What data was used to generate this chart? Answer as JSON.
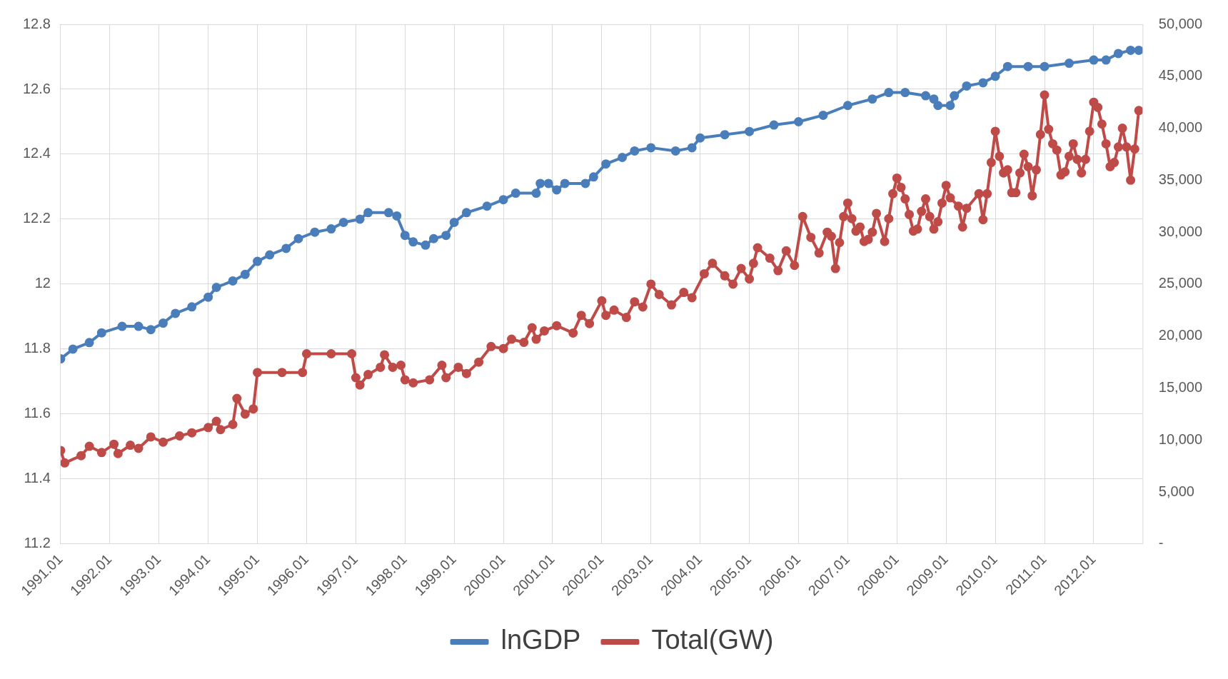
{
  "chart_data": {
    "type": "line",
    "xlim": [
      "1991-01",
      "2013-01"
    ],
    "xticks": [
      {
        "value": "1991-01",
        "label": "1991.01"
      },
      {
        "value": "1992-01",
        "label": "1992.01"
      },
      {
        "value": "1993-01",
        "label": "1993.01"
      },
      {
        "value": "1994-01",
        "label": "1994.01"
      },
      {
        "value": "1995-01",
        "label": "1995.01"
      },
      {
        "value": "1996-01",
        "label": "1996.01"
      },
      {
        "value": "1997-01",
        "label": "1997.01"
      },
      {
        "value": "1998-01",
        "label": "1998.01"
      },
      {
        "value": "1999-01",
        "label": "1999.01"
      },
      {
        "value": "2000-01",
        "label": "2000.01"
      },
      {
        "value": "2001-01",
        "label": "2001.01"
      },
      {
        "value": "2002-01",
        "label": "2002.01"
      },
      {
        "value": "2003-01",
        "label": "2003.01"
      },
      {
        "value": "2004-01",
        "label": "2004.01"
      },
      {
        "value": "2005-01",
        "label": "2005.01"
      },
      {
        "value": "2006-01",
        "label": "2006.01"
      },
      {
        "value": "2007-01",
        "label": "2007.01"
      },
      {
        "value": "2008-01",
        "label": "2008.01"
      },
      {
        "value": "2009-01",
        "label": "2009.01"
      },
      {
        "value": "2010-01",
        "label": "2010.01"
      },
      {
        "value": "2011-01",
        "label": "2011.01"
      },
      {
        "value": "2012-01",
        "label": "2012.01"
      }
    ],
    "ylim": [
      11.2,
      12.8
    ],
    "yticks": [
      11.2,
      11.4,
      11.6,
      11.8,
      12,
      12.2,
      12.4,
      12.6,
      12.8
    ],
    "y2lim": [
      0,
      50000
    ],
    "y2ticks": [
      {
        "value": 0,
        "label": "-"
      },
      {
        "value": 5000,
        "label": "5,000"
      },
      {
        "value": 10000,
        "label": "10,000"
      },
      {
        "value": 15000,
        "label": "15,000"
      },
      {
        "value": 20000,
        "label": "20,000"
      },
      {
        "value": 25000,
        "label": "25,000"
      },
      {
        "value": 30000,
        "label": "30,000"
      },
      {
        "value": 35000,
        "label": "35,000"
      },
      {
        "value": 40000,
        "label": "40,000"
      },
      {
        "value": 45000,
        "label": "45,000"
      },
      {
        "value": 50000,
        "label": "50,000"
      }
    ],
    "grid": true,
    "legend": "bottom",
    "marker": "circle",
    "line_style": "solid",
    "series": [
      {
        "name": "lnGDP",
        "color": "#4a7ebb",
        "x": [
          "1991-01",
          "1991-04",
          "1991-08",
          "1991-11",
          "1992-04",
          "1992-08",
          "1992-11",
          "1993-02",
          "1993-05",
          "1993-09",
          "1994-01",
          "1994-03",
          "1994-07",
          "1994-10",
          "1995-01",
          "1995-04",
          "1995-08",
          "1995-11",
          "1996-03",
          "1996-07",
          "1996-10",
          "1997-02",
          "1997-04",
          "1997-09",
          "1997-11",
          "1998-01",
          "1998-03",
          "1998-06",
          "1998-08",
          "1998-11",
          "1999-01",
          "1999-04",
          "1999-09",
          "2000-01",
          "2000-04",
          "2000-09",
          "2000-10",
          "2000-12",
          "2001-02",
          "2001-04",
          "2001-09",
          "2001-11",
          "2002-02",
          "2002-06",
          "2002-09",
          "2003-01",
          "2003-07",
          "2003-11",
          "2004-01",
          "2004-07",
          "2005-01",
          "2005-07",
          "2006-01",
          "2006-07",
          "2007-01",
          "2007-07",
          "2007-11",
          "2008-03",
          "2008-08",
          "2008-10",
          "2008-11",
          "2009-02",
          "2009-03",
          "2009-06",
          "2009-10",
          "2010-01",
          "2010-04",
          "2010-09",
          "2011-01",
          "2011-07",
          "2012-01",
          "2012-04",
          "2012-07",
          "2012-10",
          "2012-12"
        ],
        "values": [
          11.77,
          11.8,
          11.82,
          11.85,
          11.87,
          11.87,
          11.86,
          11.88,
          11.91,
          11.93,
          11.96,
          11.99,
          12.01,
          12.03,
          12.07,
          12.09,
          12.11,
          12.14,
          12.16,
          12.17,
          12.19,
          12.2,
          12.22,
          12.22,
          12.21,
          12.15,
          12.13,
          12.12,
          12.14,
          12.15,
          12.19,
          12.22,
          12.24,
          12.26,
          12.28,
          12.28,
          12.31,
          12.31,
          12.29,
          12.31,
          12.31,
          12.33,
          12.37,
          12.39,
          12.41,
          12.42,
          12.41,
          12.42,
          12.45,
          12.46,
          12.47,
          12.49,
          12.5,
          12.52,
          12.55,
          12.57,
          12.59,
          12.59,
          12.58,
          12.57,
          12.55,
          12.55,
          12.58,
          12.61,
          12.62,
          12.64,
          12.67,
          12.67,
          12.67,
          12.68,
          12.69,
          12.69,
          12.71,
          12.72,
          12.72
        ]
      },
      {
        "name": "Total(GW)",
        "color": "#be4b48",
        "axis": "y2",
        "x": [
          "1991-01",
          "1991-02",
          "1991-06",
          "1991-08",
          "1991-11",
          "1992-02",
          "1992-03",
          "1992-06",
          "1992-08",
          "1992-11",
          "1993-02",
          "1993-06",
          "1993-09",
          "1994-01",
          "1994-03",
          "1994-04",
          "1994-07",
          "1994-08",
          "1994-10",
          "1994-12",
          "1995-01",
          "1995-07",
          "1995-12",
          "1996-01",
          "1996-07",
          "1996-12",
          "1997-01",
          "1997-02",
          "1997-04",
          "1997-07",
          "1997-08",
          "1997-10",
          "1997-12",
          "1998-01",
          "1998-03",
          "1998-07",
          "1998-10",
          "1998-11",
          "1999-02",
          "1999-04",
          "1999-07",
          "1999-10",
          "2000-01",
          "2000-03",
          "2000-06",
          "2000-08",
          "2000-09",
          "2000-11",
          "2001-02",
          "2001-06",
          "2001-08",
          "2001-10",
          "2002-01",
          "2002-02",
          "2002-04",
          "2002-07",
          "2002-09",
          "2002-11",
          "2003-01",
          "2003-03",
          "2003-06",
          "2003-09",
          "2003-11",
          "2004-02",
          "2004-04",
          "2004-07",
          "2004-09",
          "2004-11",
          "2005-01",
          "2005-02",
          "2005-03",
          "2005-06",
          "2005-08",
          "2005-10",
          "2005-12",
          "2006-02",
          "2006-04",
          "2006-06",
          "2006-08",
          "2006-09",
          "2006-10",
          "2006-11",
          "2006-12",
          "2007-01",
          "2007-02",
          "2007-03",
          "2007-04",
          "2007-05",
          "2007-06",
          "2007-07",
          "2007-08",
          "2007-10",
          "2007-11",
          "2007-12",
          "2008-01",
          "2008-02",
          "2008-03",
          "2008-04",
          "2008-05",
          "2008-06",
          "2008-07",
          "2008-08",
          "2008-09",
          "2008-10",
          "2008-11",
          "2008-12",
          "2009-01",
          "2009-02",
          "2009-04",
          "2009-05",
          "2009-06",
          "2009-09",
          "2009-10",
          "2009-11",
          "2009-12",
          "2010-01",
          "2010-02",
          "2010-03",
          "2010-04",
          "2010-05",
          "2010-06",
          "2010-07",
          "2010-08",
          "2010-09",
          "2010-10",
          "2010-11",
          "2010-12",
          "2011-01",
          "2011-02",
          "2011-03",
          "2011-04",
          "2011-05",
          "2011-06",
          "2011-07",
          "2011-08",
          "2011-09",
          "2011-10",
          "2011-11",
          "2011-12",
          "2012-01",
          "2012-02",
          "2012-03",
          "2012-04",
          "2012-05",
          "2012-06",
          "2012-07",
          "2012-08",
          "2012-09",
          "2012-10",
          "2012-11",
          "2012-12"
        ],
        "values": [
          9000,
          7800,
          8500,
          9400,
          8800,
          9600,
          8700,
          9500,
          9200,
          10300,
          9800,
          10400,
          10700,
          11200,
          11800,
          11000,
          11500,
          14000,
          12500,
          13000,
          16500,
          16500,
          16500,
          18300,
          18300,
          18300,
          16000,
          15300,
          16300,
          17000,
          18200,
          17000,
          17200,
          15800,
          15500,
          15800,
          17200,
          16000,
          17000,
          16400,
          17500,
          19000,
          18800,
          19700,
          19400,
          20800,
          19700,
          20500,
          21000,
          20300,
          22000,
          21200,
          23400,
          22000,
          22500,
          21800,
          23300,
          22800,
          25000,
          24000,
          23000,
          24200,
          23700,
          26000,
          27000,
          25800,
          25000,
          26500,
          25500,
          27000,
          28500,
          27500,
          26300,
          28200,
          26800,
          31500,
          29500,
          28000,
          30000,
          29600,
          26500,
          29000,
          31500,
          32800,
          31300,
          30100,
          30500,
          29100,
          29300,
          30000,
          31800,
          29100,
          31300,
          33700,
          35200,
          34300,
          33200,
          31700,
          30100,
          30300,
          32000,
          33200,
          31500,
          30300,
          31000,
          32800,
          34500,
          33300,
          32500,
          30500,
          32300,
          33700,
          31200,
          33700,
          36700,
          39700,
          37300,
          35700,
          36000,
          33800,
          33800,
          35700,
          37500,
          36300,
          33500,
          36000,
          39400,
          43200,
          39900,
          38500,
          37900,
          35500,
          35800,
          37300,
          38500,
          37000,
          35700,
          37000,
          39700,
          42500,
          42000,
          40400,
          38500,
          36300,
          36700,
          38200,
          40000,
          38200,
          35000,
          38000,
          41700
        ]
      }
    ]
  }
}
